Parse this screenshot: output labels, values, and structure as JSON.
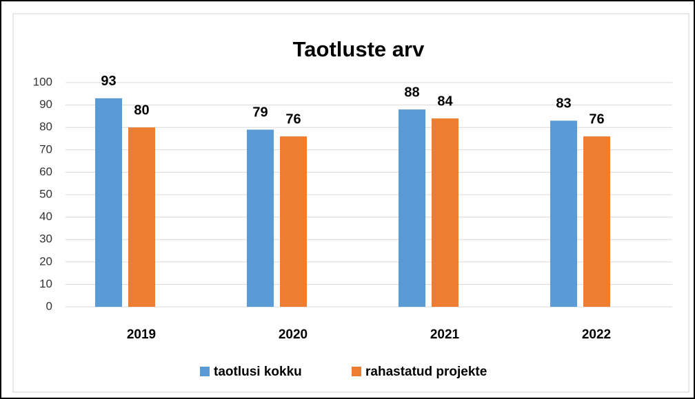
{
  "chart_data": {
    "type": "bar",
    "title": "Taotluste arv",
    "categories": [
      "2019",
      "2020",
      "2021",
      "2022"
    ],
    "series": [
      {
        "name": "taotlusi kokku",
        "color": "#5b9bd5",
        "values": [
          93,
          79,
          88,
          83
        ]
      },
      {
        "name": "rahastatud projekte",
        "color": "#ed7d31",
        "values": [
          80,
          76,
          84,
          76
        ]
      }
    ],
    "ylim": [
      0,
      100
    ],
    "yticks": [
      0,
      10,
      20,
      30,
      40,
      50,
      60,
      70,
      80,
      90,
      100
    ],
    "grid": true,
    "legend": "bottom"
  }
}
